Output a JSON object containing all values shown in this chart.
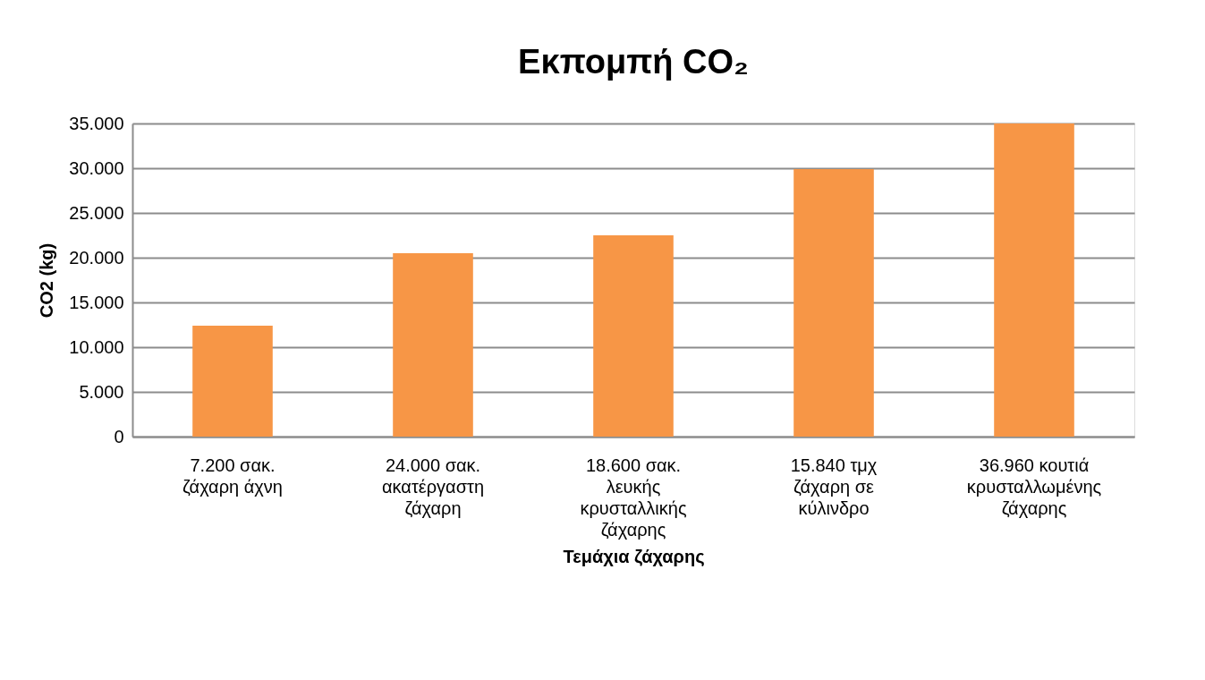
{
  "chart_data": {
    "type": "bar",
    "title": "Εκπομπή CO₂",
    "xlabel": "Τεμάχια ζάχαρης",
    "ylabel": "CO2 (kg)",
    "categories": [
      "7.200 σακ. ζάχαρη άχνη",
      "24.000 σακ. ακατέργαστη ζάχαρη",
      "18.600 σακ. λευκής κρυσταλλικής ζάχαρης",
      "15.840 τμχ ζάχαρη σε κύλινδρο",
      "36.960 κουτιά κρυσταλλωμένης ζάχαρης"
    ],
    "values": [
      12400,
      20500,
      22500,
      29900,
      35000
    ],
    "color": "#f79646",
    "ylim": [
      0,
      35000
    ],
    "yticks": [
      0,
      {
        "value": 5000,
        "label": "5.000"
      },
      {
        "value": 10000,
        "label": "10.000"
      },
      {
        "value": 15000,
        "label": "15.000"
      },
      {
        "value": 20000,
        "label": "20.000"
      },
      {
        "value": 25000,
        "label": "25.000"
      },
      {
        "value": 30000,
        "label": "30.000"
      },
      {
        "value": 35000,
        "label": "35.000"
      }
    ],
    "grid": "y"
  }
}
